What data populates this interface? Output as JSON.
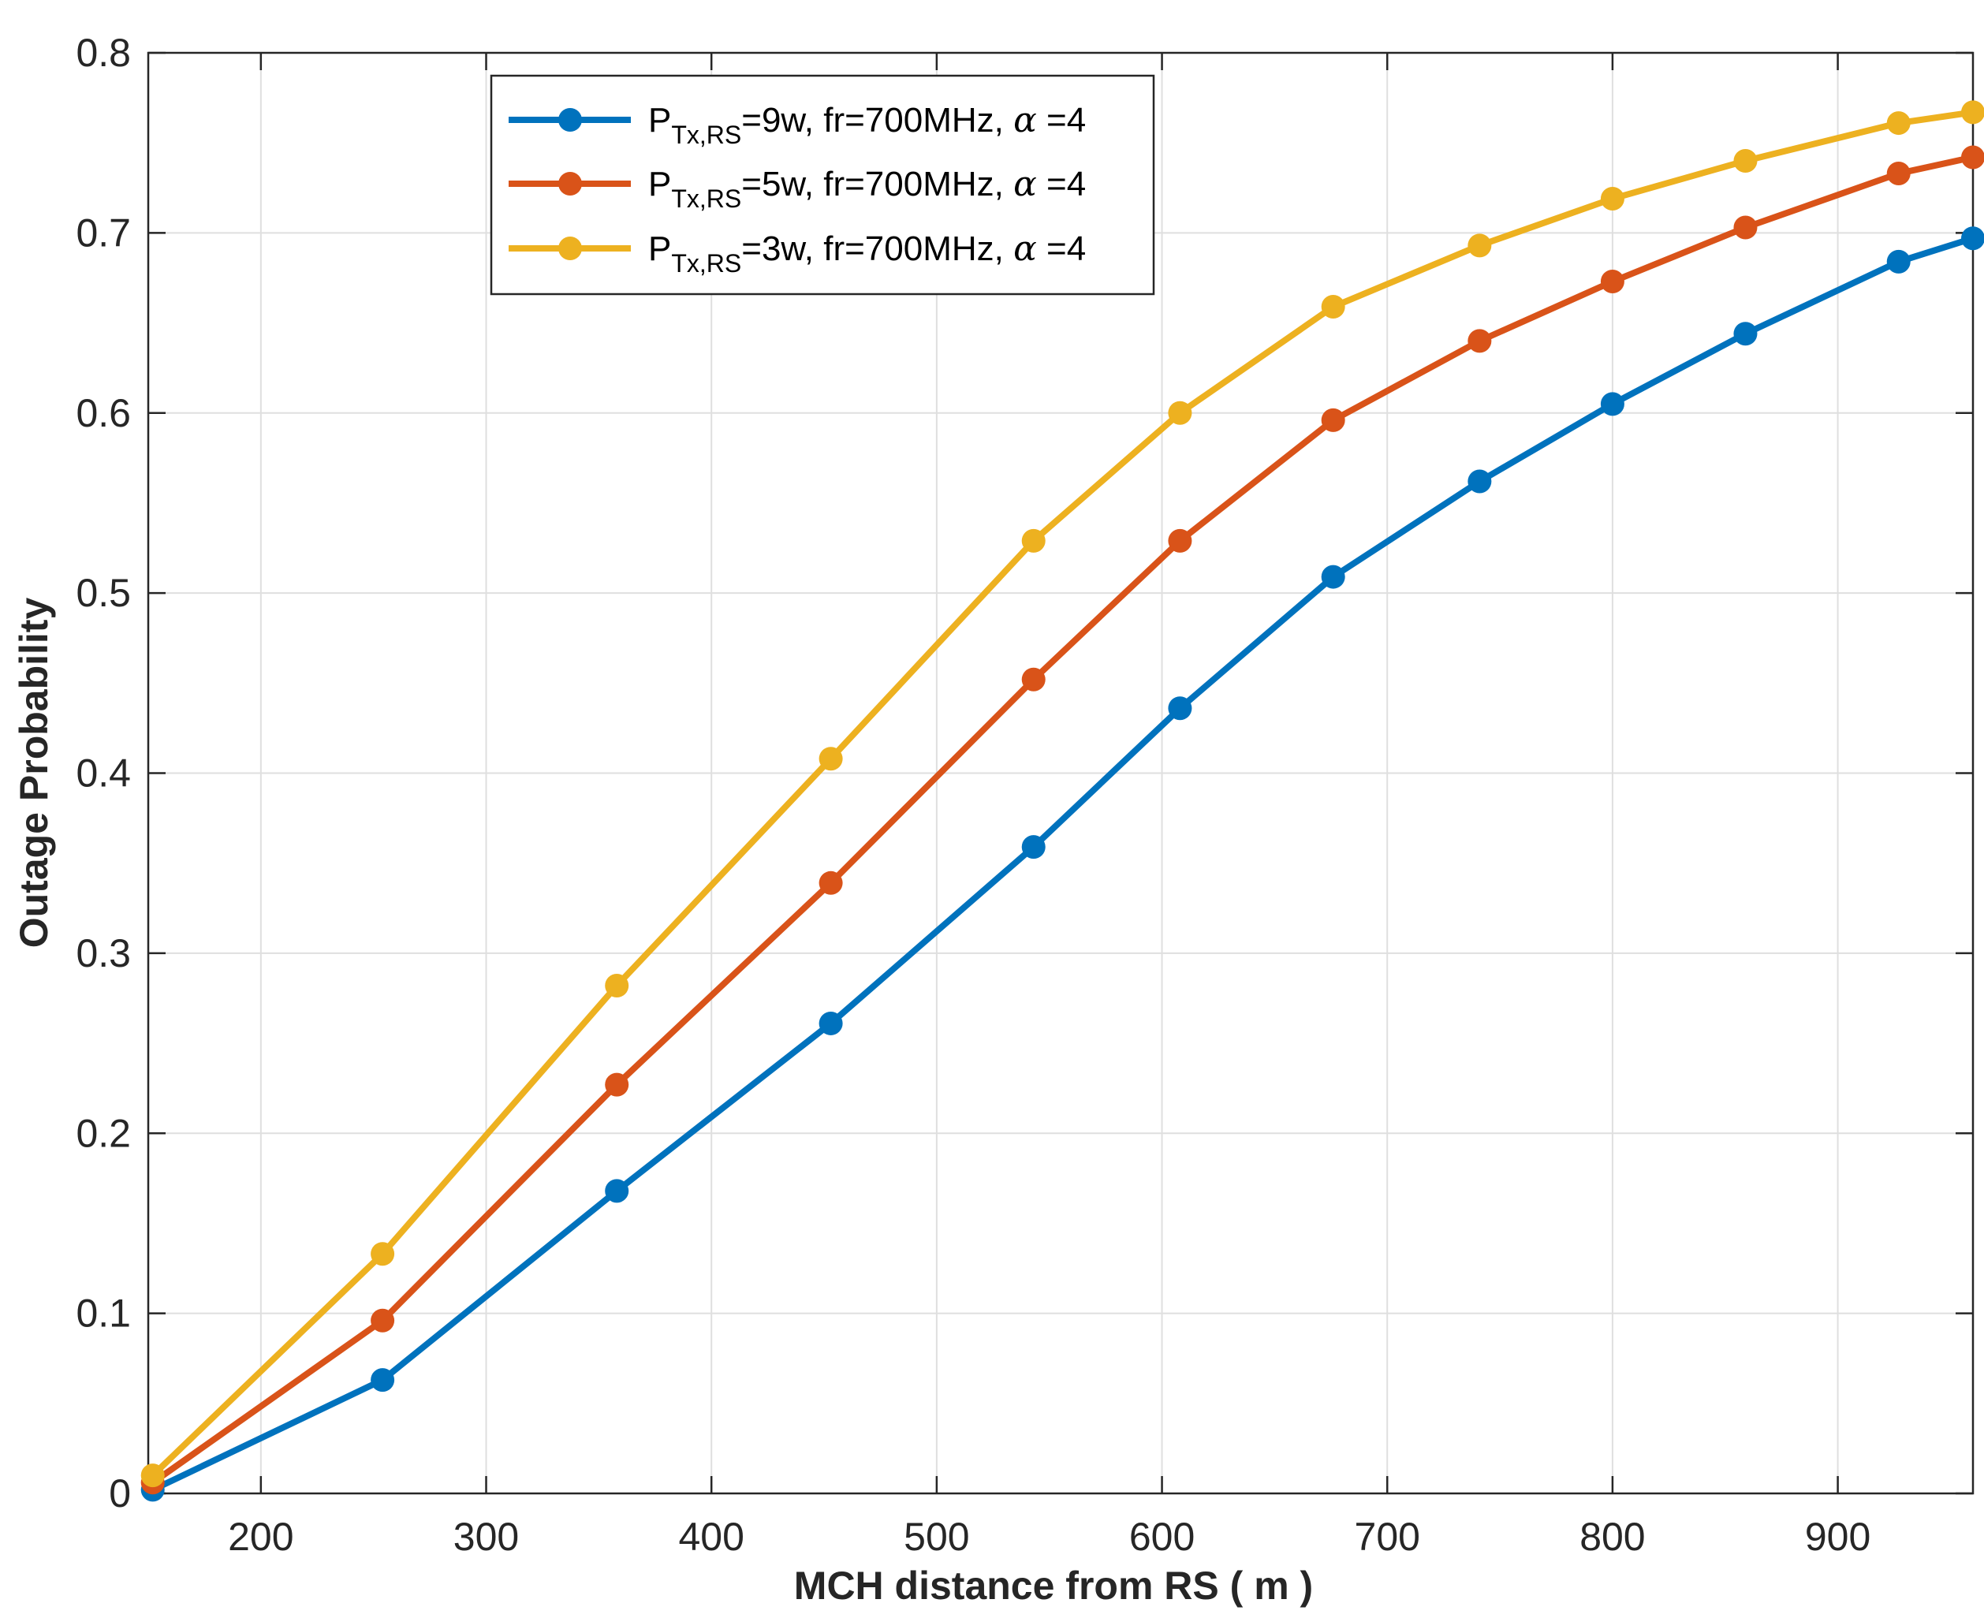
{
  "chart_data": {
    "type": "line",
    "title": "",
    "xlabel": "MCH distance from RS ( m )",
    "ylabel": "Outage Probability",
    "xlim": [
      150,
      960
    ],
    "ylim": [
      0,
      0.8
    ],
    "grid": true,
    "legend_position": "top-center",
    "x_ticks": [
      200,
      300,
      400,
      500,
      600,
      700,
      800,
      900
    ],
    "y_ticks": [
      0,
      0.1,
      0.2,
      0.3,
      0.4,
      0.5,
      0.6,
      0.7,
      0.8
    ],
    "x_tick_labels": [
      "200",
      "300",
      "400",
      "500",
      "600",
      "700",
      "800",
      "900"
    ],
    "y_tick_labels": [
      "0",
      "0.1",
      "0.2",
      "0.3",
      "0.4",
      "0.5",
      "0.6",
      "0.7",
      "0.8"
    ],
    "x": [
      152,
      254,
      358,
      453,
      543,
      608,
      676,
      741,
      800,
      859,
      927,
      960
    ],
    "series": [
      {
        "name": "P_Tx,RS=9w, fr=700MHz, α =4",
        "legend": {
          "base": "P",
          "sub": "Tx,RS",
          "mid": "=9w, fr=700MHz, ",
          "alpha": "α",
          "tail": " =4"
        },
        "color": "#0072BD",
        "values": [
          0.002,
          0.063,
          0.168,
          0.261,
          0.359,
          0.436,
          0.509,
          0.562,
          0.605,
          0.644,
          0.684,
          0.697
        ]
      },
      {
        "name": "P_Tx,RS=5w, fr=700MHz, α =4",
        "legend": {
          "base": "P",
          "sub": "Tx,RS",
          "mid": "=5w, fr=700MHz, ",
          "alpha": "α",
          "tail": " =4"
        },
        "color": "#D95319",
        "values": [
          0.006,
          0.096,
          0.227,
          0.339,
          0.452,
          0.529,
          0.596,
          0.64,
          0.673,
          0.703,
          0.733,
          0.742
        ]
      },
      {
        "name": "P_Tx,RS=3w, fr=700MHz, α =4",
        "legend": {
          "base": "P",
          "sub": "Tx,RS",
          "mid": "=3w, fr=700MHz, ",
          "alpha": "α",
          "tail": " =4"
        },
        "color": "#EDB120",
        "values": [
          0.01,
          0.133,
          0.282,
          0.408,
          0.529,
          0.6,
          0.659,
          0.693,
          0.719,
          0.74,
          0.761,
          0.767
        ]
      }
    ]
  }
}
